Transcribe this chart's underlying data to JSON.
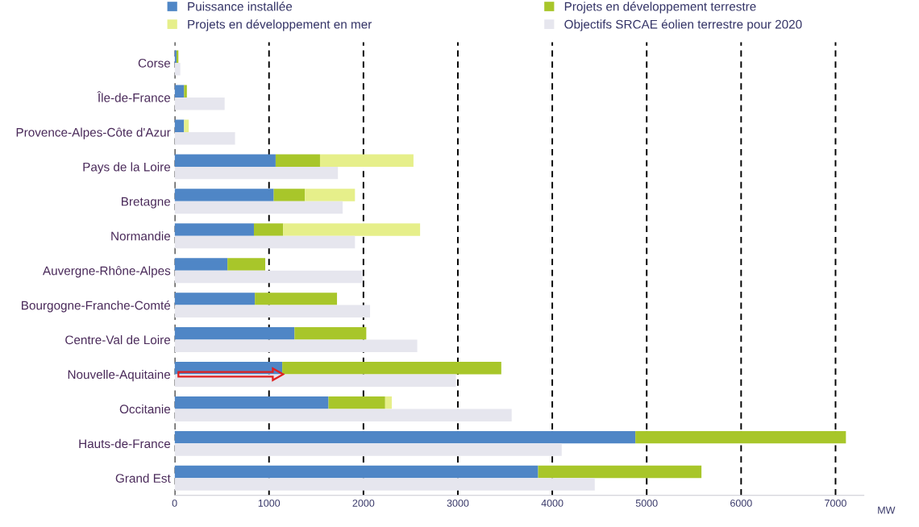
{
  "chart_data": [
    {
      "type": "bar",
      "orientation": "horizontal",
      "stacked": true,
      "xlabel": "MW",
      "categories": [
        "Corse",
        "Île-de-France",
        "Provence-Alpes-Côte d'Azur",
        "Pays de la Loire",
        "Bretagne",
        "Normandie",
        "Auvergne-Rhône-Alpes",
        "Bourgogne-Franche-Comté",
        "Centre-Val de Loire",
        "Nouvelle-Aquitaine",
        "Occitanie",
        "Hauts-de-France",
        "Grand Est"
      ],
      "series": [
        {
          "name": "Puissance installée",
          "color": "#4f86c6",
          "values": [
            20,
            100,
            100,
            1070,
            1050,
            840,
            560,
            850,
            1270,
            1140,
            1630,
            4880,
            3850
          ]
        },
        {
          "name": "Projets en développement terrestre",
          "color": "#a8c62a",
          "values": [
            20,
            30,
            null,
            470,
            330,
            310,
            400,
            870,
            760,
            2320,
            600,
            2230,
            1730
          ]
        },
        {
          "name": "Projets en développement en mer",
          "color": "#e6ef8a",
          "values": [
            null,
            null,
            50,
            990,
            530,
            1450,
            null,
            null,
            null,
            null,
            70,
            null,
            null
          ]
        }
      ],
      "xlim": [
        0,
        7300
      ],
      "xticks": [
        0,
        1000,
        2000,
        3000,
        4000,
        5000,
        6000,
        7000
      ],
      "grid": "x",
      "legend": "top"
    },
    {
      "type": "bar",
      "orientation": "horizontal",
      "categories": [
        null,
        null,
        null,
        null,
        null,
        null,
        null,
        null,
        null,
        null,
        null,
        null,
        null
      ],
      "series": [
        {
          "name": "Objectifs SRCAE éolien terrestre pour 2020",
          "color": "#e6e6ee",
          "values": [
            60,
            530,
            640,
            1730,
            1780,
            1910,
            1990,
            2070,
            2570,
            2980,
            3570,
            4100,
            4450
          ]
        }
      ],
      "xlim": [
        0,
        7300
      ],
      "xticks": [
        0,
        1000,
        2000,
        3000,
        4000,
        5000,
        6000,
        7000
      ],
      "tick_labels": false,
      "legend": "top"
    }
  ]
}
